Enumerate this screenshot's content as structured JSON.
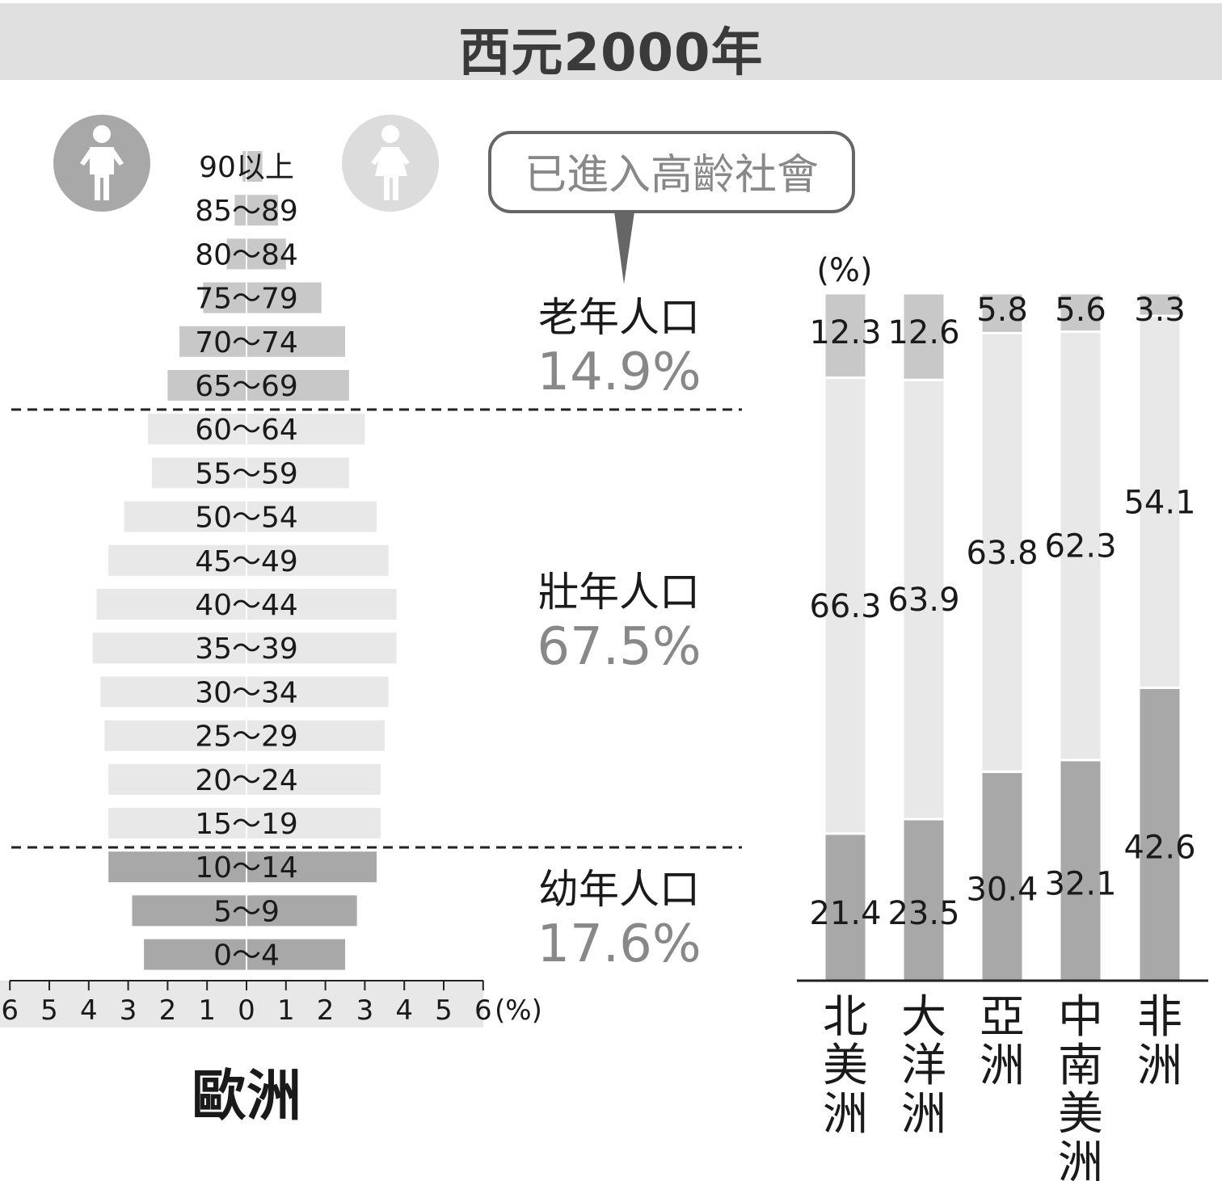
{
  "title": "西元2000年",
  "callout": "已進入高齡社會",
  "colors": {
    "old": "#c8c8c8",
    "working": "#e8e8e8",
    "young": "#a8a8a8",
    "banner": "#e0e0e0",
    "male_icon": "#a8a8a8",
    "female_icon": "#dcdcdc"
  },
  "icons": {
    "male": "male-person-icon",
    "female": "female-person-icon"
  },
  "groups": [
    {
      "name": "老年人口",
      "value": "14.9%"
    },
    {
      "name": "壯年人口",
      "value": "67.5%"
    },
    {
      "name": "幼年人口",
      "value": "17.6%"
    }
  ],
  "chart_data": [
    {
      "type": "bar",
      "subtype": "population-pyramid",
      "title": "歐洲",
      "xlabel_unit": "(%)",
      "xticks": [
        "6",
        "5",
        "4",
        "3",
        "2",
        "1",
        "0",
        "1",
        "2",
        "3",
        "4",
        "5",
        "6"
      ],
      "xlim": [
        -6,
        6
      ],
      "categories": [
        "90以上",
        "85～89",
        "80～84",
        "75～79",
        "70～74",
        "65～69",
        "60～64",
        "55～59",
        "50～54",
        "45～49",
        "40～44",
        "35～39",
        "30～34",
        "25～29",
        "20～24",
        "15～19",
        "10～14",
        "5～9",
        "0～4"
      ],
      "series": [
        {
          "side": "left",
          "values": [
            0.1,
            0.3,
            0.5,
            1.1,
            1.7,
            2.0,
            2.5,
            2.4,
            3.1,
            3.5,
            3.8,
            3.9,
            3.7,
            3.6,
            3.5,
            3.5,
            3.5,
            2.9,
            2.6
          ]
        },
        {
          "side": "right",
          "values": [
            0.4,
            0.8,
            1.0,
            1.9,
            2.5,
            2.6,
            3.0,
            2.6,
            3.3,
            3.6,
            3.8,
            3.8,
            3.6,
            3.5,
            3.4,
            3.4,
            3.3,
            2.8,
            2.5
          ]
        }
      ],
      "group": [
        "old",
        "old",
        "old",
        "old",
        "old",
        "old",
        "working",
        "working",
        "working",
        "working",
        "working",
        "working",
        "working",
        "working",
        "working",
        "working",
        "young",
        "young",
        "young"
      ]
    },
    {
      "type": "bar",
      "subtype": "stacked-100",
      "ylabel_unit": "(%)",
      "categories": [
        "北美洲",
        "大洋洲",
        "亞洲",
        "中南美洲",
        "非洲"
      ],
      "series": [
        {
          "key": "young",
          "values": [
            21.4,
            23.5,
            30.4,
            32.1,
            42.6
          ]
        },
        {
          "key": "working",
          "values": [
            66.3,
            63.9,
            63.8,
            62.3,
            54.1
          ]
        },
        {
          "key": "old",
          "values": [
            12.3,
            12.6,
            5.8,
            5.6,
            3.3
          ]
        }
      ]
    }
  ]
}
